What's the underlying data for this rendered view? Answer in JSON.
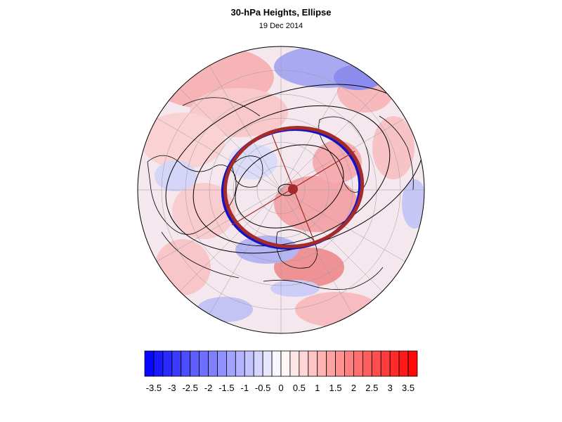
{
  "title": "30-hPa Heights, Ellipse",
  "subtitle": "19 Dec 2014",
  "colors": {
    "negative_max": "#0000ff",
    "positive_max": "#ff0000",
    "ellipse_outer": "#a52a2a",
    "ellipse_inner": "#0000cc",
    "contour": "#000000"
  },
  "colorbar": {
    "levels": [
      -3.75,
      -3.5,
      -3.25,
      -3,
      -2.75,
      -2.5,
      -2.25,
      -2,
      -1.75,
      -1.5,
      -1.25,
      -1,
      -0.75,
      -0.5,
      -0.25,
      0,
      0.25,
      0.5,
      0.75,
      1,
      1.25,
      1.5,
      1.75,
      2,
      2.25,
      2.5,
      2.75,
      3,
      3.25,
      3.5,
      3.75
    ],
    "tick_labels": [
      "-3.5",
      "-3",
      "-2.5",
      "-2",
      "-1.5",
      "-1",
      "-0.5",
      "0",
      "0.5",
      "1",
      "1.5",
      "2",
      "2.5",
      "3",
      "3.5"
    ]
  }
}
